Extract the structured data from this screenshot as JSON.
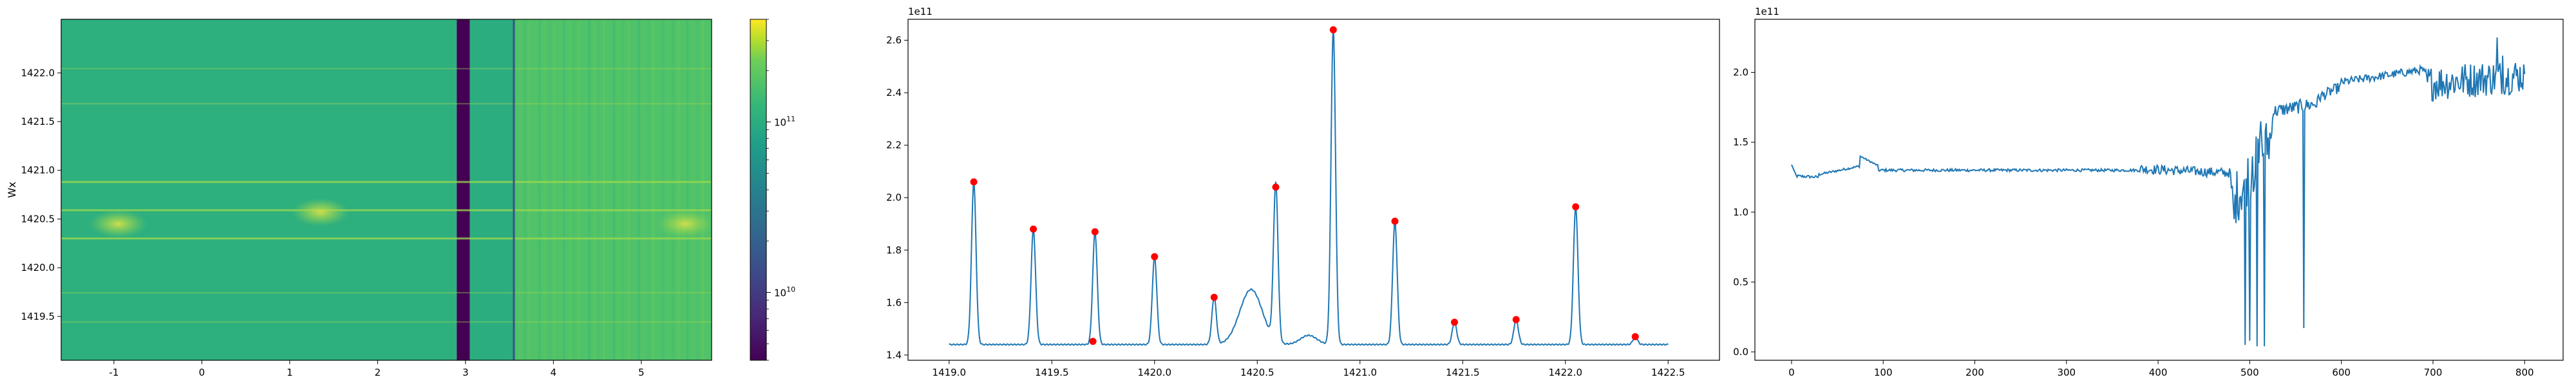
{
  "figure": {
    "background": "#ffffff"
  },
  "chart_data": [
    {
      "type": "heatmap",
      "title": "",
      "xlabel": "",
      "ylabel": "Wx",
      "xlim": [
        -1.6,
        5.8
      ],
      "ylim": [
        1419.05,
        1422.55
      ],
      "xticks": [
        "-1",
        "0",
        "1",
        "2",
        "3",
        "4",
        "5"
      ],
      "xtick_values": [
        -1,
        0,
        1,
        2,
        3,
        4,
        5
      ],
      "yticks": [
        "1419.5",
        "1420.0",
        "1420.5",
        "1421.0",
        "1421.5",
        "1422.0"
      ],
      "ytick_values": [
        1419.5,
        1420.0,
        1420.5,
        1421.0,
        1421.5,
        1422.0
      ],
      "colormap": "viridis",
      "colorbar": {
        "scale": "log",
        "range": [
          4000000000.0,
          400000000000.0
        ],
        "ticks": [
          {
            "base": "10",
            "exp": "10",
            "value": 10000000000.0
          },
          {
            "base": "10",
            "exp": "11",
            "value": 100000000000.0
          }
        ]
      },
      "regions": [
        {
          "x": [
            -1.6,
            2.9
          ],
          "value_level": 0.63,
          "description": "left field"
        },
        {
          "x": [
            2.9,
            3.05
          ],
          "value_level": 0.0,
          "description": "dark band"
        },
        {
          "x": [
            3.05,
            3.55
          ],
          "value_level": 0.62,
          "description": "mid field"
        },
        {
          "x": [
            3.55,
            5.8
          ],
          "value_level": 0.72,
          "description": "right field"
        }
      ],
      "vertical_line_x": 3.55,
      "bright_rows_y": [
        1420.88,
        1420.59,
        1420.3,
        1421.68,
        1422.04,
        1419.74,
        1419.44
      ],
      "hot_spots": [
        {
          "x": -0.95,
          "y": 1420.45
        },
        {
          "x": 1.35,
          "y": 1420.57
        },
        {
          "x": 5.5,
          "y": 1420.45
        }
      ]
    },
    {
      "type": "line",
      "title": "",
      "xlabel": "",
      "ylabel": "",
      "offset_label": "1e11",
      "xlim": [
        1418.8,
        1422.75
      ],
      "ylim": [
        1.38,
        2.68
      ],
      "xticks": [
        "1419.0",
        "1419.5",
        "1420.0",
        "1420.5",
        "1421.0",
        "1421.5",
        "1422.0",
        "1422.5"
      ],
      "xtick_values": [
        1419.0,
        1419.5,
        1420.0,
        1420.5,
        1421.0,
        1421.5,
        1422.0,
        1422.5
      ],
      "yticks": [
        "1.4",
        "1.6",
        "1.8",
        "2.0",
        "2.2",
        "2.4",
        "2.6"
      ],
      "ytick_values": [
        1.4,
        1.6,
        1.8,
        2.0,
        2.2,
        2.4,
        2.6
      ],
      "line_color": "#1f77b4",
      "marker_color": "#ff0000",
      "baseline": 1.44,
      "x_range": [
        1419.0,
        1422.5
      ],
      "peaks": [
        {
          "x": 1419.12,
          "y": 2.06
        },
        {
          "x": 1419.41,
          "y": 1.88
        },
        {
          "x": 1419.71,
          "y": 1.87
        },
        {
          "x": 1420.0,
          "y": 1.775
        },
        {
          "x": 1420.29,
          "y": 1.62
        },
        {
          "x": 1420.59,
          "y": 2.04
        },
        {
          "x": 1420.87,
          "y": 2.64
        },
        {
          "x": 1421.17,
          "y": 1.91
        },
        {
          "x": 1421.46,
          "y": 1.525
        },
        {
          "x": 1421.76,
          "y": 1.535
        },
        {
          "x": 1422.05,
          "y": 1.965
        },
        {
          "x": 1422.34,
          "y": 1.47
        }
      ],
      "extra_markers": [
        {
          "x": 1419.7,
          "y": 1.452
        }
      ],
      "bumps": [
        {
          "x": 1420.47,
          "height": 0.21,
          "width": 0.055
        },
        {
          "x": 1420.75,
          "height": 0.035,
          "width": 0.04
        }
      ]
    },
    {
      "type": "line",
      "title": "",
      "xlabel": "",
      "ylabel": "",
      "offset_label": "1e11",
      "xlim": [
        -40,
        842
      ],
      "ylim": [
        -0.06,
        2.38
      ],
      "xticks": [
        "0",
        "100",
        "200",
        "300",
        "400",
        "500",
        "600",
        "700",
        "800"
      ],
      "xtick_values": [
        0,
        100,
        200,
        300,
        400,
        500,
        600,
        700,
        800
      ],
      "yticks": [
        "0.0",
        "0.5",
        "1.0",
        "1.5",
        "2.0"
      ],
      "ytick_values": [
        0.0,
        0.5,
        1.0,
        1.5,
        2.0
      ],
      "line_color": "#1f77b4",
      "n_points": 801,
      "segments": [
        {
          "x": [
            0,
            30
          ],
          "level": [
            1.26,
            1.25
          ],
          "noise": 0.01
        },
        {
          "x": [
            30,
            75
          ],
          "level": [
            1.27,
            1.33
          ],
          "noise": 0.008
        },
        {
          "x": [
            75,
            95
          ],
          "level": [
            1.4,
            1.33
          ],
          "noise": 0.006
        },
        {
          "x": [
            95,
            380
          ],
          "level": [
            1.3,
            1.3
          ],
          "noise": 0.01
        },
        {
          "x": [
            380,
            480
          ],
          "level": [
            1.31,
            1.28
          ],
          "noise": 0.035
        },
        {
          "x": [
            480,
            525
          ],
          "level": [
            1.05,
            1.55
          ],
          "noise": 0.2
        },
        {
          "x": [
            525,
            575
          ],
          "level": [
            1.72,
            1.78
          ],
          "noise": 0.05
        },
        {
          "x": [
            575,
            600
          ],
          "level": [
            1.82,
            1.9
          ],
          "noise": 0.04
        },
        {
          "x": [
            600,
            690
          ],
          "level": [
            1.93,
            2.02
          ],
          "noise": 0.03
        },
        {
          "x": [
            690,
            800
          ],
          "level": [
            1.92,
            1.98
          ],
          "noise": 0.13
        }
      ],
      "dips": [
        {
          "x": 483,
          "y": 0.95
        },
        {
          "x": 495,
          "y": 0.05
        },
        {
          "x": 500,
          "y": 0.08
        },
        {
          "x": 503,
          "y": 1.4
        },
        {
          "x": 508,
          "y": 0.04
        },
        {
          "x": 512,
          "y": 1.65
        },
        {
          "x": 516,
          "y": 0.04
        },
        {
          "x": 559,
          "y": 0.17
        },
        {
          "x": 770,
          "y": 2.25
        },
        {
          "x": 776,
          "y": 2.12
        }
      ]
    }
  ]
}
